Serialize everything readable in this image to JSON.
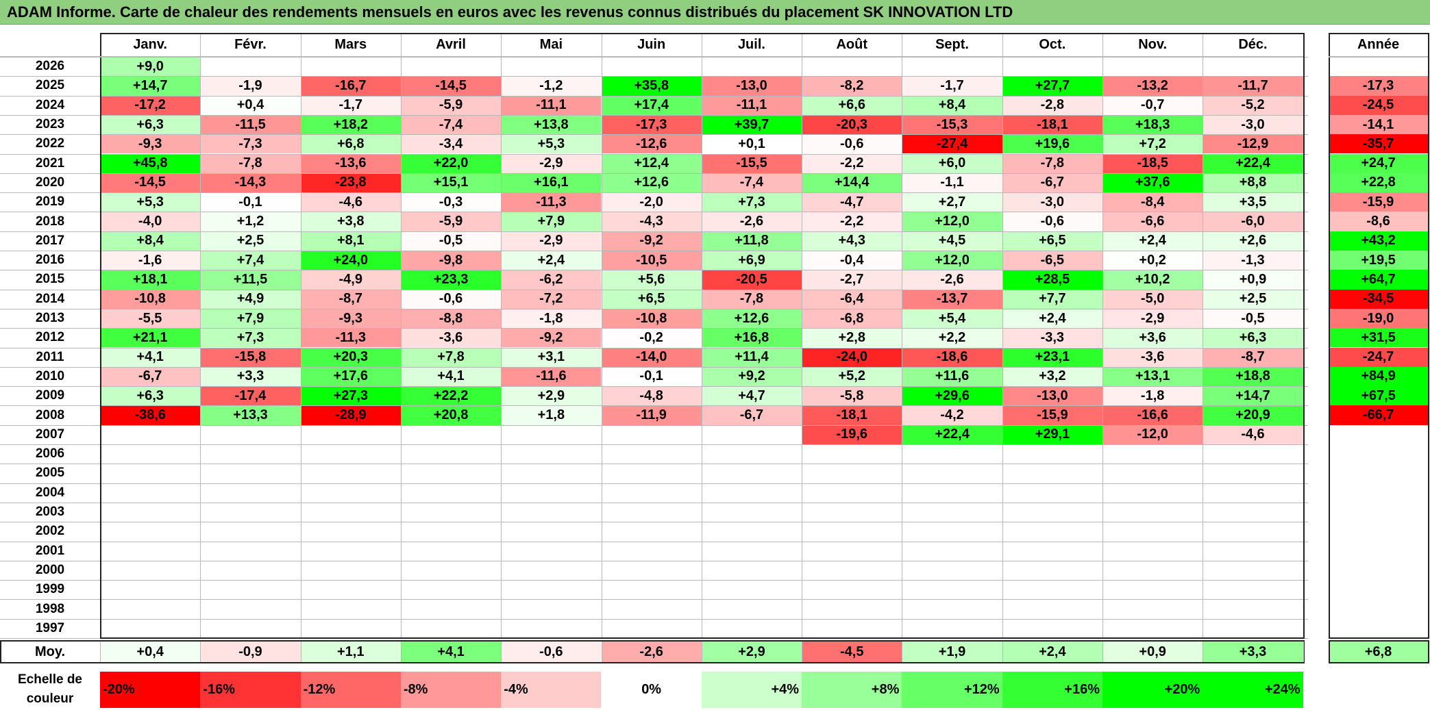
{
  "title": "ADAM Informe. Carte de chaleur des rendements mensuels en euros avec les revenus connus distribués du placement SK INNOVATION LTD",
  "colors": {
    "title_bg": "#8fcf7f",
    "neg_max": "#ff0000",
    "neutral": "#ffffff",
    "pos_max": "#00ff00"
  },
  "chart_data": {
    "type": "heatmap",
    "months": [
      "Janv.",
      "Févr.",
      "Mars",
      "Avril",
      "Mai",
      "Juin",
      "Juil.",
      "Août",
      "Sept.",
      "Oct.",
      "Nov.",
      "Déc."
    ],
    "annual_header": "Année",
    "years": [
      "2026",
      "2025",
      "2024",
      "2023",
      "2022",
      "2021",
      "2020",
      "2019",
      "2018",
      "2017",
      "2016",
      "2015",
      "2014",
      "2013",
      "2012",
      "2011",
      "2010",
      "2009",
      "2008",
      "2007",
      "2006",
      "2005",
      "2004",
      "2003",
      "2002",
      "2001",
      "2000",
      "1999",
      "1998",
      "1997"
    ],
    "values": [
      [
        "+9,0",
        "",
        "",
        "",
        "",
        "",
        "",
        "",
        "",
        "",
        "",
        ""
      ],
      [
        "+14,7",
        "-1,9",
        "-16,7",
        "-14,5",
        "-1,2",
        "+35,8",
        "-13,0",
        "-8,2",
        "-1,7",
        "+27,7",
        "-13,2",
        "-11,7"
      ],
      [
        "-17,2",
        "+0,4",
        "-1,7",
        "-5,9",
        "-11,1",
        "+17,4",
        "-11,1",
        "+6,6",
        "+8,4",
        "-2,8",
        "-0,7",
        "-5,2"
      ],
      [
        "+6,3",
        "-11,5",
        "+18,2",
        "-7,4",
        "+13,8",
        "-17,3",
        "+39,7",
        "-20,3",
        "-15,3",
        "-18,1",
        "+18,3",
        "-3,0"
      ],
      [
        "-9,3",
        "-7,3",
        "+6,8",
        "-3,4",
        "+5,3",
        "-12,6",
        "+0,1",
        "-0,6",
        "-27,4",
        "+19,6",
        "+7,2",
        "-12,9"
      ],
      [
        "+45,8",
        "-7,8",
        "-13,6",
        "+22,0",
        "-2,9",
        "+12,4",
        "-15,5",
        "-2,2",
        "+6,0",
        "-7,8",
        "-18,5",
        "+22,4"
      ],
      [
        "-14,5",
        "-14,3",
        "-23,8",
        "+15,1",
        "+16,1",
        "+12,6",
        "-7,4",
        "+14,4",
        "-1,1",
        "-6,7",
        "+37,6",
        "+8,8"
      ],
      [
        "+5,3",
        "-0,1",
        "-4,6",
        "-0,3",
        "-11,3",
        "-2,0",
        "+7,3",
        "-4,7",
        "+2,7",
        "-3,0",
        "-8,4",
        "+3,5"
      ],
      [
        "-4,0",
        "+1,2",
        "+3,8",
        "-5,9",
        "+7,9",
        "-4,3",
        "-2,6",
        "-2,2",
        "+12,0",
        "-0,6",
        "-6,6",
        "-6,0"
      ],
      [
        "+8,4",
        "+2,5",
        "+8,1",
        "-0,5",
        "-2,9",
        "-9,2",
        "+11,8",
        "+4,3",
        "+4,5",
        "+6,5",
        "+2,4",
        "+2,6"
      ],
      [
        "-1,6",
        "+7,4",
        "+24,0",
        "-9,8",
        "+2,4",
        "-10,5",
        "+6,9",
        "-0,4",
        "+12,0",
        "-6,5",
        "+0,2",
        "-1,3"
      ],
      [
        "+18,1",
        "+11,5",
        "-4,9",
        "+23,3",
        "-6,2",
        "+5,6",
        "-20,5",
        "-2,7",
        "-2,6",
        "+28,5",
        "+10,2",
        "+0,9"
      ],
      [
        "-10,8",
        "+4,9",
        "-8,7",
        "-0,6",
        "-7,2",
        "+6,5",
        "-7,8",
        "-6,4",
        "-13,7",
        "+7,7",
        "-5,0",
        "+2,5"
      ],
      [
        "-5,5",
        "+7,9",
        "-9,3",
        "-8,8",
        "-1,8",
        "-10,8",
        "+12,6",
        "-6,8",
        "+5,4",
        "+2,4",
        "-2,9",
        "-0,5"
      ],
      [
        "+21,1",
        "+7,3",
        "-11,3",
        "-3,6",
        "-9,2",
        "-0,2",
        "+16,8",
        "+2,8",
        "+2,2",
        "-3,3",
        "+3,6",
        "+6,3"
      ],
      [
        "+4,1",
        "-15,8",
        "+20,3",
        "+7,8",
        "+3,1",
        "-14,0",
        "+11,4",
        "-24,0",
        "-18,6",
        "+23,1",
        "-3,6",
        "-8,7"
      ],
      [
        "-6,7",
        "+3,3",
        "+17,6",
        "+4,1",
        "-11,6",
        "-0,1",
        "+9,2",
        "+5,2",
        "+11,6",
        "+3,2",
        "+13,1",
        "+18,8"
      ],
      [
        "+6,3",
        "-17,4",
        "+27,3",
        "+22,2",
        "+2,9",
        "-4,8",
        "+4,7",
        "-5,8",
        "+29,6",
        "-13,0",
        "-1,8",
        "+14,7"
      ],
      [
        "-38,6",
        "+13,3",
        "-28,9",
        "+20,8",
        "+1,8",
        "-11,9",
        "-6,7",
        "-18,1",
        "-4,2",
        "-15,9",
        "-16,6",
        "+20,9"
      ],
      [
        "",
        "",
        "",
        "",
        "",
        "",
        "",
        "-19,6",
        "+22,4",
        "+29,1",
        "-12,0",
        "-4,6"
      ],
      [
        "",
        "",
        "",
        "",
        "",
        "",
        "",
        "",
        "",
        "",
        "",
        ""
      ],
      [
        "",
        "",
        "",
        "",
        "",
        "",
        "",
        "",
        "",
        "",
        "",
        ""
      ],
      [
        "",
        "",
        "",
        "",
        "",
        "",
        "",
        "",
        "",
        "",
        "",
        ""
      ],
      [
        "",
        "",
        "",
        "",
        "",
        "",
        "",
        "",
        "",
        "",
        "",
        ""
      ],
      [
        "",
        "",
        "",
        "",
        "",
        "",
        "",
        "",
        "",
        "",
        "",
        ""
      ],
      [
        "",
        "",
        "",
        "",
        "",
        "",
        "",
        "",
        "",
        "",
        "",
        ""
      ],
      [
        "",
        "",
        "",
        "",
        "",
        "",
        "",
        "",
        "",
        "",
        "",
        ""
      ],
      [
        "",
        "",
        "",
        "",
        "",
        "",
        "",
        "",
        "",
        "",
        "",
        ""
      ],
      [
        "",
        "",
        "",
        "",
        "",
        "",
        "",
        "",
        "",
        "",
        "",
        ""
      ],
      [
        "",
        "",
        "",
        "",
        "",
        "",
        "",
        "",
        "",
        "",
        "",
        ""
      ]
    ],
    "annual": [
      "",
      "-17,3",
      "-24,5",
      "-14,1",
      "-35,7",
      "+24,7",
      "+22,8",
      "-15,9",
      "-8,6",
      "+43,2",
      "+19,5",
      "+64,7",
      "-34,5",
      "-19,0",
      "+31,5",
      "-24,7",
      "+84,9",
      "+67,5",
      "-66,7",
      "",
      "",
      "",
      "",
      "",
      "",
      "",
      "",
      "",
      "",
      ""
    ],
    "average_label": "Moy.",
    "averages": [
      "+0,4",
      "-0,9",
      "+1,1",
      "+4,1",
      "-0,6",
      "-2,6",
      "+2,9",
      "-4,5",
      "+1,9",
      "+2,4",
      "+0,9",
      "+3,3"
    ],
    "average_annual": "+6,8",
    "scale_label": "Echelle de couleur",
    "scale": [
      "-20%",
      "-16%",
      "-12%",
      "-8%",
      "-4%",
      "0%",
      "+4%",
      "+8%",
      "+12%",
      "+16%",
      "+20%",
      "+24%"
    ]
  }
}
